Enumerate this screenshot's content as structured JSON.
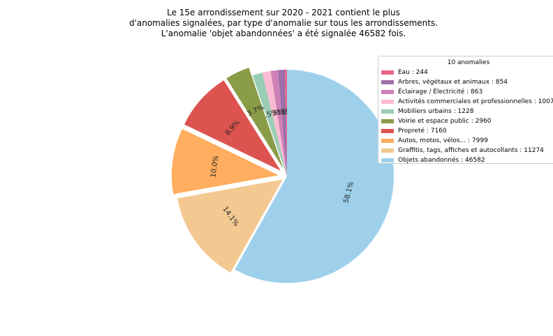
{
  "chart_data": {
    "type": "pie",
    "title_lines": [
      "Le 15e arrondissement sur 2020 - 2021 contient le plus",
      "d'anomalies signalées, par type d'anomalie sur tous les arrondissements.",
      "L'anomalie 'objet abandonnées' a été signalée 46582 fois."
    ],
    "legend_title": "10 anomalies",
    "legend_position": "upper-right",
    "slices": [
      {
        "label": "Eau : 244",
        "value": 244,
        "pct": "0.3%",
        "color": "#ee6488",
        "explode": 0.0
      },
      {
        "label": "Arbres, végétaux et animaux : 854",
        "value": 854,
        "pct": "1.1%",
        "color": "#9e6fa8",
        "explode": 0.0
      },
      {
        "label": "Éclairage / Électricité : 863",
        "value": 863,
        "pct": "1.1%",
        "color": "#cd81b6",
        "explode": 0.0
      },
      {
        "label": "Activités commerciales et professionnelles : 1007",
        "value": 1007,
        "pct": "1.3%",
        "color": "#fbbcd3",
        "explode": 0.0
      },
      {
        "label": "Mobiliers urbains : 1228",
        "value": 1228,
        "pct": "1.5%",
        "color": "#9bcdb5",
        "explode": 0.0
      },
      {
        "label": "Voirie et espace public : 2960",
        "value": 2960,
        "pct": "3.7%",
        "color": "#8b9c48",
        "explode": 0.08
      },
      {
        "label": "Propreté : 7160",
        "value": 7160,
        "pct": "8.9%",
        "color": "#dc5350",
        "explode": 0.08
      },
      {
        "label": "Autos, motos, vélos... : 7999",
        "value": 7999,
        "pct": "10.0%",
        "color": "#ffad5f",
        "explode": 0.08
      },
      {
        "label": "Graffitis, tags, affiches et autocollants : 11274",
        "value": 11274,
        "pct": "14.1%",
        "color": "#f3c891",
        "explode": 0.05
      },
      {
        "label": "Objets abandonnés : 46582",
        "value": 46582,
        "pct": "58.1%",
        "color": "#9ed0ec",
        "explode": 0.0
      }
    ]
  }
}
